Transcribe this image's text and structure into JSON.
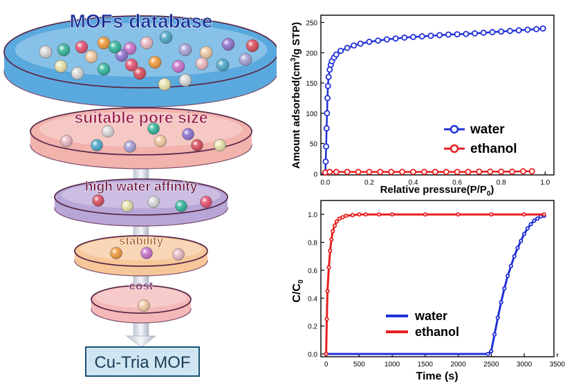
{
  "funnel": {
    "stages": [
      {
        "label": "MOFs database",
        "text_color": "#1a2f96",
        "dish_color": "#5aa9de"
      },
      {
        "label": "suitable pore size",
        "text_color": "#9b1d4a",
        "dish_color": "#f2b3ad"
      },
      {
        "label": "high water affinity",
        "text_color": "#6a1640",
        "dish_color": "#b9a6d9"
      },
      {
        "label": "stability",
        "text_color": "#a85a1a",
        "dish_color": "#f7c79a"
      },
      {
        "label": "cost",
        "text_color": "#6a1a58",
        "dish_color": "#f5b8b8"
      }
    ],
    "result": "Cu-Tria MOF"
  },
  "chart_data": [
    {
      "type": "line",
      "xlabel": "Relative pressure(P/P",
      "xlabel_sub": "0",
      "xlabel_end": ")",
      "ylabel": "Amount adsorbed(cm",
      "ylabel_sup": "3",
      "ylabel_end": "/g STP)",
      "xlim": [
        -0.02,
        1.04
      ],
      "ylim": [
        -2,
        262
      ],
      "xticks": [
        "0.0",
        "0.2",
        "0.4",
        "0.6",
        "0.8",
        "1.0"
      ],
      "yticks": [
        "0",
        "50",
        "100",
        "150",
        "200",
        "250"
      ],
      "legend_position": "right",
      "series": [
        {
          "name": "water",
          "color": "#1f2fd8",
          "x": [
            0.0,
            0.002,
            0.004,
            0.006,
            0.008,
            0.01,
            0.012,
            0.015,
            0.02,
            0.025,
            0.03,
            0.04,
            0.05,
            0.07,
            0.1,
            0.13,
            0.16,
            0.2,
            0.24,
            0.28,
            0.32,
            0.36,
            0.4,
            0.44,
            0.48,
            0.52,
            0.56,
            0.6,
            0.64,
            0.68,
            0.72,
            0.76,
            0.8,
            0.84,
            0.88,
            0.92,
            0.96,
            0.99
          ],
          "y": [
            2,
            20,
            45,
            75,
            100,
            125,
            145,
            160,
            172,
            180,
            186,
            192,
            197,
            203,
            208,
            212,
            215,
            218,
            220,
            222,
            223.5,
            225,
            226,
            227,
            228,
            229,
            230,
            230.5,
            231,
            232,
            233,
            234,
            235,
            236,
            237,
            238,
            239,
            240
          ]
        },
        {
          "name": "ethanol",
          "color": "#e81e1e",
          "x": [
            0.0,
            0.02,
            0.05,
            0.1,
            0.15,
            0.2,
            0.25,
            0.3,
            0.35,
            0.4,
            0.45,
            0.5,
            0.55,
            0.6,
            0.65,
            0.7,
            0.75,
            0.8,
            0.85,
            0.9,
            0.94
          ],
          "y": [
            2,
            3,
            3,
            3,
            3,
            3,
            3,
            3,
            3,
            3,
            3,
            3,
            3,
            3,
            3,
            3.5,
            3.5,
            3.5,
            3.5,
            4,
            4
          ]
        }
      ]
    },
    {
      "type": "line",
      "xlabel": "Time (s)",
      "ylabel": "C/C",
      "ylabel_sub": "0",
      "xlim": [
        -80,
        3450
      ],
      "ylim": [
        -0.02,
        1.1
      ],
      "xticks": [
        "0",
        "500",
        "1000",
        "1500",
        "2000",
        "2500",
        "3000",
        "3500"
      ],
      "yticks": [
        "0.0",
        "0.2",
        "0.4",
        "0.6",
        "0.8",
        "1.0"
      ],
      "legend_position": "bottom-center",
      "series": [
        {
          "name": "water",
          "color": "#1f2fd8",
          "x": [
            0,
            2450,
            2500,
            2550,
            2600,
            2650,
            2700,
            2750,
            2800,
            2850,
            2900,
            2950,
            3000,
            3050,
            3100,
            3150,
            3200,
            3250,
            3300
          ],
          "y": [
            0,
            0,
            0.02,
            0.14,
            0.26,
            0.37,
            0.47,
            0.56,
            0.63,
            0.7,
            0.76,
            0.81,
            0.86,
            0.9,
            0.93,
            0.955,
            0.97,
            0.985,
            0.99
          ]
        },
        {
          "name": "ethanol",
          "color": "#e81e1e",
          "x": [
            0,
            10,
            20,
            40,
            60,
            80,
            100,
            130,
            160,
            200,
            250,
            300,
            400,
            500,
            600,
            800,
            1000,
            1500,
            2000,
            2500,
            3000,
            3300
          ],
          "y": [
            0,
            0.25,
            0.45,
            0.62,
            0.74,
            0.82,
            0.88,
            0.92,
            0.95,
            0.97,
            0.98,
            0.99,
            0.995,
            1.0,
            1.0,
            1.0,
            1.0,
            1.0,
            1.0,
            1.0,
            1.0,
            1.0
          ]
        }
      ]
    }
  ]
}
